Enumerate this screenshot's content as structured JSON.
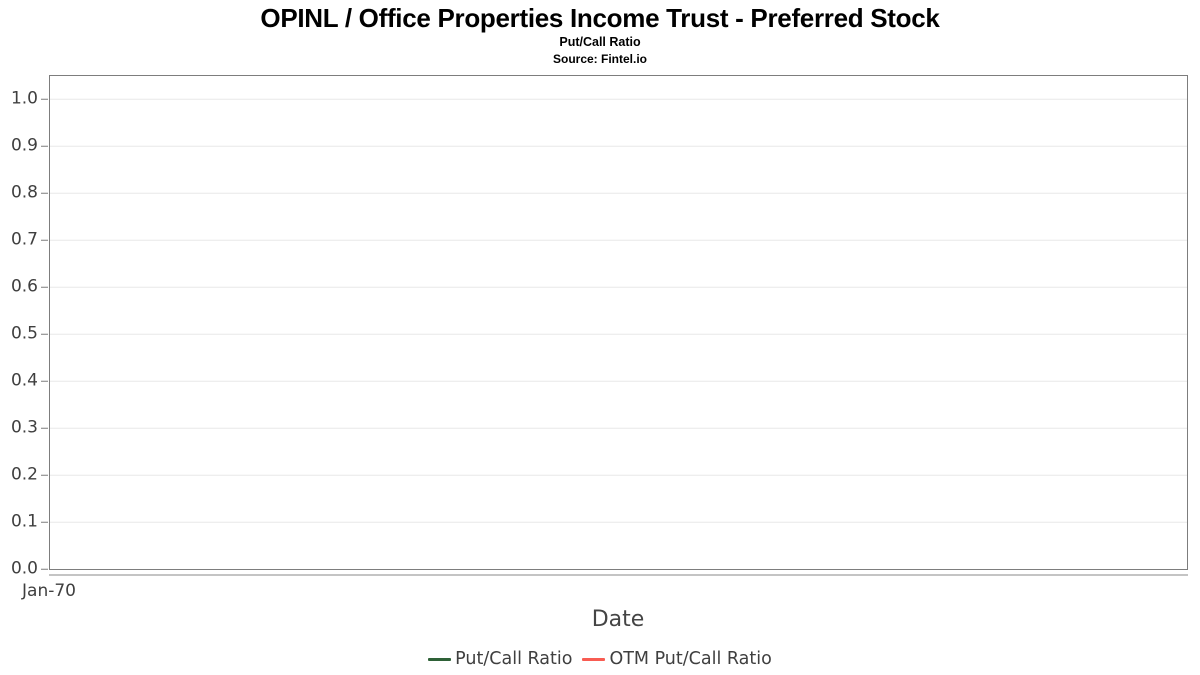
{
  "chart_data": {
    "type": "line",
    "title": "OPINL / Office Properties Income Trust - Preferred Stock",
    "subtitle": "Put/Call Ratio",
    "source": "Source: Fintel.io",
    "xlabel": "Date",
    "ylabel": "",
    "x_tick_labels": [
      "Jan-70"
    ],
    "yticks": [
      0.0,
      0.1,
      0.2,
      0.3,
      0.4,
      0.5,
      0.6,
      0.7,
      0.8,
      0.9,
      1.0
    ],
    "ylim": [
      0,
      1.05
    ],
    "grid": true,
    "legend_position": "bottom",
    "series": [
      {
        "name": "Put/Call Ratio",
        "color": "#2e6137",
        "values": []
      },
      {
        "name": "OTM Put/Call Ratio",
        "color": "#f85c52",
        "values": []
      }
    ]
  },
  "colors": {
    "plot_border": "#7d7d7d",
    "gridline": "#e8e8e8",
    "secondary_axis_line": "#c4c4c4",
    "tick_label": "#3f3f3f",
    "title": "#000000"
  }
}
